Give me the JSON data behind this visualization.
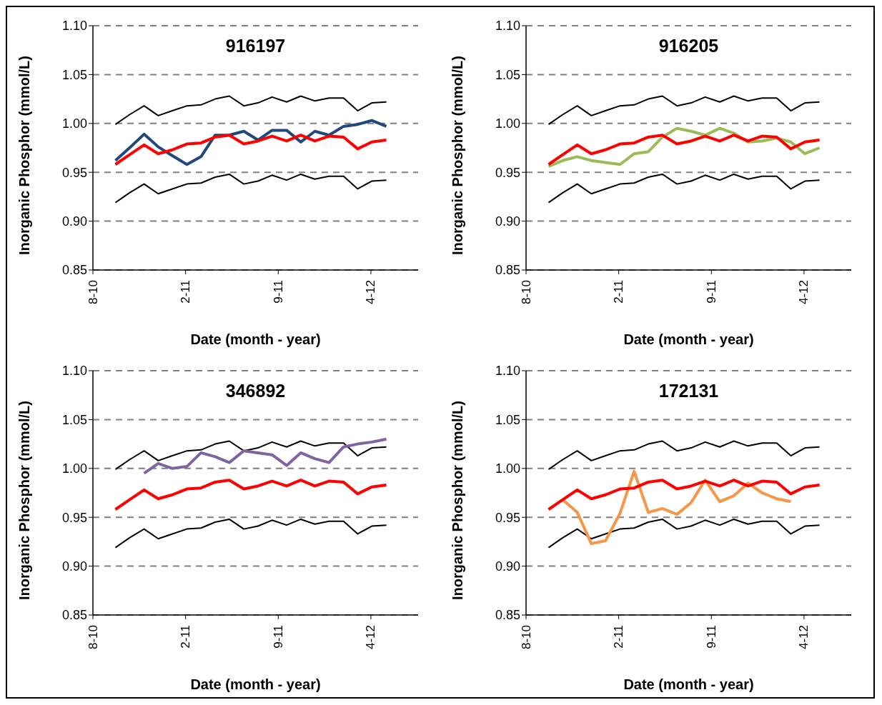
{
  "chart_data": [
    {
      "type": "line",
      "title": "916197",
      "xlabel": "Date (month - year)",
      "ylabel": "Inorganic Phosphor (mmol/L)",
      "x": [
        "2010-09-21",
        "2010-10-23",
        "2010-11-25",
        "2010-12-27",
        "2011-01-28",
        "2011-03-02",
        "2011-04-03",
        "2011-05-05",
        "2011-06-06",
        "2011-07-09",
        "2011-08-10",
        "2011-09-11",
        "2011-10-14",
        "2011-11-15",
        "2011-12-17",
        "2012-01-18",
        "2012-02-20",
        "2012-03-23",
        "2012-04-24",
        "2012-05-27"
      ],
      "xlim": [
        "2010-08-01",
        "2012-08-07"
      ],
      "xticks": [
        {
          "value": "2010-08-01",
          "label": "8-10"
        },
        {
          "value": "2011-02-27",
          "label": "2-11"
        },
        {
          "value": "2011-09-25",
          "label": "9-11"
        },
        {
          "value": "2012-04-22",
          "label": "4-12"
        }
      ],
      "ylim": [
        0.85,
        1.1
      ],
      "yticks": [
        {
          "value": 0.85,
          "label": "0.85"
        },
        {
          "value": 0.9,
          "label": "0.90"
        },
        {
          "value": 0.95,
          "label": "0.95"
        },
        {
          "value": 1.0,
          "label": "1.00"
        },
        {
          "value": 1.05,
          "label": "1.05"
        },
        {
          "value": 1.1,
          "label": "1.10"
        }
      ],
      "grid": "y",
      "marker": "none",
      "line_style": "solid",
      "series": [
        {
          "color": "#000000",
          "values": [
            0.999,
            1.009,
            1.018,
            1.008,
            1.013,
            1.018,
            1.019,
            1.025,
            1.028,
            1.018,
            1.021,
            1.027,
            1.022,
            1.028,
            1.023,
            1.026,
            1.026,
            1.013,
            1.021,
            1.022
          ]
        },
        {
          "color": "#000000",
          "values": [
            0.919,
            0.929,
            0.938,
            0.928,
            0.933,
            0.938,
            0.939,
            0.945,
            0.948,
            0.938,
            0.941,
            0.947,
            0.942,
            0.948,
            0.943,
            0.946,
            0.946,
            0.933,
            0.941,
            0.942
          ]
        },
        {
          "color": "#1f497d",
          "values": [
            0.962,
            0.975,
            0.989,
            0.976,
            0.967,
            0.958,
            0.966,
            0.988,
            0.988,
            0.992,
            0.983,
            0.993,
            0.993,
            0.981,
            0.992,
            0.988,
            0.997,
            0.999,
            1.003,
            0.997
          ]
        },
        {
          "color": "#ff0000",
          "values": [
            0.958,
            0.968,
            0.978,
            0.969,
            0.973,
            0.979,
            0.98,
            0.986,
            0.988,
            0.979,
            0.982,
            0.987,
            0.982,
            0.988,
            0.982,
            0.987,
            0.986,
            0.974,
            0.981,
            0.983
          ]
        }
      ]
    },
    {
      "type": "line",
      "title": "916205",
      "xlabel": "Date (month - year)",
      "ylabel": "Inorganic Phosphor (mmol/L)",
      "x": [
        "2010-09-21",
        "2010-10-23",
        "2010-11-25",
        "2010-12-27",
        "2011-01-28",
        "2011-03-02",
        "2011-04-03",
        "2011-05-05",
        "2011-06-06",
        "2011-07-09",
        "2011-08-10",
        "2011-09-11",
        "2011-10-14",
        "2011-11-15",
        "2011-12-17",
        "2012-01-18",
        "2012-02-20",
        "2012-03-23",
        "2012-04-24",
        "2012-05-27"
      ],
      "xlim": [
        "2010-08-01",
        "2012-08-07"
      ],
      "xticks": [
        {
          "value": "2010-08-01",
          "label": "8-10"
        },
        {
          "value": "2011-02-27",
          "label": "2-11"
        },
        {
          "value": "2011-09-25",
          "label": "9-11"
        },
        {
          "value": "2012-04-22",
          "label": "4-12"
        }
      ],
      "ylim": [
        0.85,
        1.1
      ],
      "yticks": [
        {
          "value": 0.85,
          "label": "0.85"
        },
        {
          "value": 0.9,
          "label": "0.90"
        },
        {
          "value": 0.95,
          "label": "0.95"
        },
        {
          "value": 1.0,
          "label": "1.00"
        },
        {
          "value": 1.05,
          "label": "1.05"
        },
        {
          "value": 1.1,
          "label": "1.10"
        }
      ],
      "grid": "y",
      "marker": "none",
      "line_style": "solid",
      "series": [
        {
          "color": "#000000",
          "values": [
            0.999,
            1.009,
            1.018,
            1.008,
            1.013,
            1.018,
            1.019,
            1.025,
            1.028,
            1.018,
            1.021,
            1.027,
            1.022,
            1.028,
            1.023,
            1.026,
            1.026,
            1.013,
            1.021,
            1.022
          ]
        },
        {
          "color": "#000000",
          "values": [
            0.919,
            0.929,
            0.938,
            0.928,
            0.933,
            0.938,
            0.939,
            0.945,
            0.948,
            0.938,
            0.941,
            0.947,
            0.942,
            0.948,
            0.943,
            0.946,
            0.946,
            0.933,
            0.941,
            0.942
          ]
        },
        {
          "color": "#9bbb59",
          "values": [
            0.956,
            0.962,
            0.966,
            0.962,
            0.96,
            0.958,
            0.969,
            0.971,
            0.986,
            0.995,
            0.992,
            0.988,
            0.995,
            0.99,
            0.981,
            0.982,
            0.985,
            0.981,
            0.969,
            0.975
          ]
        },
        {
          "color": "#ff0000",
          "values": [
            0.958,
            0.968,
            0.978,
            0.969,
            0.973,
            0.979,
            0.98,
            0.986,
            0.988,
            0.979,
            0.982,
            0.987,
            0.982,
            0.988,
            0.982,
            0.987,
            0.986,
            0.974,
            0.981,
            0.983
          ]
        }
      ]
    },
    {
      "type": "line",
      "title": "346892",
      "xlabel": "Date (month - year)",
      "ylabel": "Inorganic Phosphor (mmol/L)",
      "x": [
        "2010-09-21",
        "2010-10-23",
        "2010-11-25",
        "2010-12-27",
        "2011-01-28",
        "2011-03-02",
        "2011-04-03",
        "2011-05-05",
        "2011-06-06",
        "2011-07-09",
        "2011-08-10",
        "2011-09-11",
        "2011-10-14",
        "2011-11-15",
        "2011-12-17",
        "2012-01-18",
        "2012-02-20",
        "2012-03-23",
        "2012-04-24",
        "2012-05-27"
      ],
      "xlim": [
        "2010-08-01",
        "2012-08-07"
      ],
      "xticks": [
        {
          "value": "2010-08-01",
          "label": "8-10"
        },
        {
          "value": "2011-02-27",
          "label": "2-11"
        },
        {
          "value": "2011-09-25",
          "label": "9-11"
        },
        {
          "value": "2012-04-22",
          "label": "4-12"
        }
      ],
      "ylim": [
        0.85,
        1.1
      ],
      "yticks": [
        {
          "value": 0.85,
          "label": "0.85"
        },
        {
          "value": 0.9,
          "label": "0.90"
        },
        {
          "value": 0.95,
          "label": "0.95"
        },
        {
          "value": 1.0,
          "label": "1.00"
        },
        {
          "value": 1.05,
          "label": "1.05"
        },
        {
          "value": 1.1,
          "label": "1.10"
        }
      ],
      "grid": "y",
      "marker": "none",
      "line_style": "solid",
      "series": [
        {
          "color": "#000000",
          "values": [
            0.999,
            1.009,
            1.018,
            1.008,
            1.013,
            1.018,
            1.019,
            1.025,
            1.028,
            1.018,
            1.021,
            1.027,
            1.022,
            1.028,
            1.023,
            1.026,
            1.026,
            1.013,
            1.021,
            1.022
          ]
        },
        {
          "color": "#000000",
          "values": [
            0.919,
            0.929,
            0.938,
            0.928,
            0.933,
            0.938,
            0.939,
            0.945,
            0.948,
            0.938,
            0.941,
            0.947,
            0.942,
            0.948,
            0.943,
            0.946,
            0.946,
            0.933,
            0.941,
            0.942
          ]
        },
        {
          "color": "#8064a2",
          "values": [
            null,
            null,
            0.995,
            1.005,
            1.0,
            1.002,
            1.016,
            1.012,
            1.006,
            1.018,
            1.016,
            1.014,
            1.003,
            1.016,
            1.01,
            1.006,
            1.022,
            1.025,
            1.027,
            1.03
          ]
        },
        {
          "color": "#ff0000",
          "values": [
            0.958,
            0.968,
            0.978,
            0.969,
            0.973,
            0.979,
            0.98,
            0.986,
            0.988,
            0.979,
            0.982,
            0.987,
            0.982,
            0.988,
            0.982,
            0.987,
            0.986,
            0.974,
            0.981,
            0.983
          ]
        }
      ]
    },
    {
      "type": "line",
      "title": "172131",
      "xlabel": "Date (month - year)",
      "ylabel": "Inorganic Phosphor (mmol/L)",
      "x": [
        "2010-09-21",
        "2010-10-23",
        "2010-11-25",
        "2010-12-27",
        "2011-01-28",
        "2011-03-02",
        "2011-04-03",
        "2011-05-05",
        "2011-06-06",
        "2011-07-09",
        "2011-08-10",
        "2011-09-11",
        "2011-10-14",
        "2011-11-15",
        "2011-12-17",
        "2012-01-18",
        "2012-02-20",
        "2012-03-23",
        "2012-04-24",
        "2012-05-27"
      ],
      "xlim": [
        "2010-08-01",
        "2012-08-07"
      ],
      "xticks": [
        {
          "value": "2010-08-01",
          "label": "8-10"
        },
        {
          "value": "2011-02-27",
          "label": "2-11"
        },
        {
          "value": "2011-09-25",
          "label": "9-11"
        },
        {
          "value": "2012-04-22",
          "label": "4-12"
        }
      ],
      "ylim": [
        0.85,
        1.1
      ],
      "yticks": [
        {
          "value": 0.85,
          "label": "0.85"
        },
        {
          "value": 0.9,
          "label": "0.90"
        },
        {
          "value": 0.95,
          "label": "0.95"
        },
        {
          "value": 1.0,
          "label": "1.00"
        },
        {
          "value": 1.05,
          "label": "1.05"
        },
        {
          "value": 1.1,
          "label": "1.10"
        }
      ],
      "grid": "y",
      "marker": "none",
      "line_style": "solid",
      "series": [
        {
          "color": "#000000",
          "values": [
            0.999,
            1.009,
            1.018,
            1.008,
            1.013,
            1.018,
            1.019,
            1.025,
            1.028,
            1.018,
            1.021,
            1.027,
            1.022,
            1.028,
            1.023,
            1.026,
            1.026,
            1.013,
            1.021,
            1.022
          ]
        },
        {
          "color": "#000000",
          "values": [
            0.919,
            0.929,
            0.938,
            0.928,
            0.933,
            0.938,
            0.939,
            0.945,
            0.948,
            0.938,
            0.941,
            0.947,
            0.942,
            0.948,
            0.943,
            0.946,
            0.946,
            0.933,
            0.941,
            0.942
          ]
        },
        {
          "color": "#f79646",
          "values": [
            null,
            0.968,
            0.955,
            0.923,
            0.926,
            0.954,
            0.997,
            0.955,
            0.959,
            0.953,
            0.965,
            0.988,
            0.966,
            0.972,
            0.985,
            0.975,
            0.969,
            0.966,
            null,
            null
          ]
        },
        {
          "color": "#ff0000",
          "values": [
            0.958,
            0.968,
            0.978,
            0.969,
            0.973,
            0.979,
            0.98,
            0.986,
            0.988,
            0.979,
            0.982,
            0.987,
            0.982,
            0.988,
            0.982,
            0.987,
            0.986,
            0.974,
            0.981,
            0.983
          ]
        }
      ]
    }
  ]
}
